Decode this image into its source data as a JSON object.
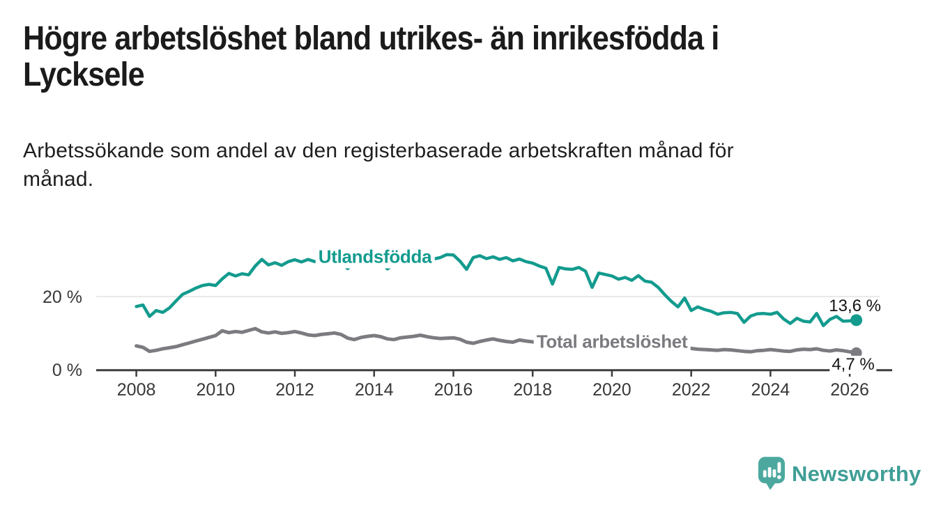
{
  "header": {
    "title_lines": [
      "Högre arbetslöshet bland utrikes- än inrikesfödda i",
      "Lycksele"
    ],
    "subtitle_lines": [
      "Arbetssökande som andel av den registerbaserade arbetskraften månad för",
      "månad."
    ]
  },
  "chart_data": {
    "type": "line",
    "title": "Högre arbetslöshet bland utrikes- än inrikesfödda i Lycksele",
    "subtitle": "Arbetssökande som andel av den registerbaserade arbetskraften månad för månad.",
    "unit": "%",
    "grid": "single horizontal gridline at 20 %",
    "legend_position": "labels drawn on lines",
    "x_axis": {
      "range": [
        2008,
        2026.2
      ],
      "ticks": [
        {
          "label": "2008",
          "year": 2008
        },
        {
          "label": "2010",
          "year": 2010
        },
        {
          "label": "2012",
          "year": 2012
        },
        {
          "label": "2014",
          "year": 2014
        },
        {
          "label": "2016",
          "year": 2016
        },
        {
          "label": "2018",
          "year": 2018
        },
        {
          "label": "2020",
          "year": 2020
        },
        {
          "label": "2022",
          "year": 2022
        },
        {
          "label": "2024",
          "year": 2024
        },
        {
          "label": "2026",
          "year": 2026
        }
      ]
    },
    "y_axis": {
      "range": [
        0,
        38
      ],
      "ticks": [
        {
          "label": "20 %",
          "value": 20
        },
        {
          "label": "0 %",
          "value": 0
        }
      ]
    },
    "x0": 2008,
    "dx_years": 0.16667,
    "series": [
      {
        "name": "Utlandsfödda",
        "color": "#139B8E",
        "line_width": 4.5,
        "dot_radius": 8.5,
        "end_label": "13,6 %",
        "end_value": 13.6,
        "values": [
          17.3,
          17.7,
          14.6,
          16.2,
          15.7,
          16.9,
          18.8,
          20.6,
          21.4,
          22.3,
          23.0,
          23.3,
          23.0,
          24.8,
          26.3,
          25.6,
          26.2,
          25.9,
          28.3,
          30.1,
          28.6,
          29.2,
          28.5,
          29.5,
          30.0,
          29.4,
          30.1,
          29.5,
          29.9,
          29.3,
          30.1,
          28.9,
          27.6,
          29.4,
          30.2,
          29.7,
          30.4,
          29.6,
          27.5,
          28.8,
          29.8,
          29.5,
          29.7,
          30.5,
          30.9,
          30.2,
          30.6,
          31.4,
          31.3,
          29.6,
          27.4,
          30.6,
          31.1,
          30.3,
          30.8,
          30.1,
          30.6,
          29.7,
          30.2,
          29.5,
          29.1,
          28.3,
          27.7,
          23.4,
          27.9,
          27.5,
          27.4,
          27.9,
          26.9,
          22.5,
          26.4,
          26.0,
          25.6,
          24.7,
          25.2,
          24.4,
          25.7,
          24.2,
          23.9,
          22.5,
          20.5,
          18.7,
          17.2,
          19.6,
          16.2,
          17.2,
          16.5,
          16.0,
          15.2,
          15.6,
          15.7,
          15.4,
          13.0,
          14.7,
          15.3,
          15.4,
          15.2,
          15.7,
          13.9,
          12.7,
          14.1,
          13.3,
          13.1,
          15.4,
          12.1,
          13.8,
          14.6,
          13.3,
          13.4,
          13.6
        ]
      },
      {
        "name": "Total arbetslöshet",
        "color": "#7B7B80",
        "line_width": 5,
        "dot_radius": 8,
        "end_label": "4,7 %",
        "end_value": 4.7,
        "values": [
          6.6,
          6.2,
          5.1,
          5.4,
          5.8,
          6.1,
          6.4,
          6.9,
          7.4,
          7.9,
          8.4,
          8.9,
          9.4,
          10.7,
          10.2,
          10.5,
          10.3,
          10.8,
          11.3,
          10.4,
          10.1,
          10.4,
          10.0,
          10.2,
          10.5,
          10.1,
          9.6,
          9.4,
          9.7,
          9.9,
          10.1,
          9.7,
          8.7,
          8.3,
          8.9,
          9.2,
          9.4,
          9.1,
          8.5,
          8.3,
          8.8,
          9.0,
          9.2,
          9.5,
          9.1,
          8.8,
          8.6,
          8.7,
          8.8,
          8.4,
          7.6,
          7.3,
          7.8,
          8.2,
          8.5,
          8.1,
          7.8,
          7.6,
          8.2,
          7.9,
          7.7,
          7.4,
          7.1,
          6.9,
          7.2,
          7.4,
          7.3,
          7.0,
          6.8,
          6.6,
          6.9,
          7.1,
          7.3,
          7.8,
          8.5,
          8.2,
          7.9,
          7.7,
          7.5,
          7.2,
          6.9,
          6.6,
          6.3,
          6.1,
          5.9,
          5.7,
          5.6,
          5.5,
          5.4,
          5.6,
          5.5,
          5.3,
          5.1,
          5.0,
          5.3,
          5.4,
          5.6,
          5.4,
          5.2,
          5.1,
          5.5,
          5.7,
          5.6,
          5.8,
          5.4,
          5.2,
          5.5,
          5.3,
          5.0,
          4.7
        ]
      }
    ]
  },
  "branding": {
    "wordmark": "Newsworthy"
  }
}
